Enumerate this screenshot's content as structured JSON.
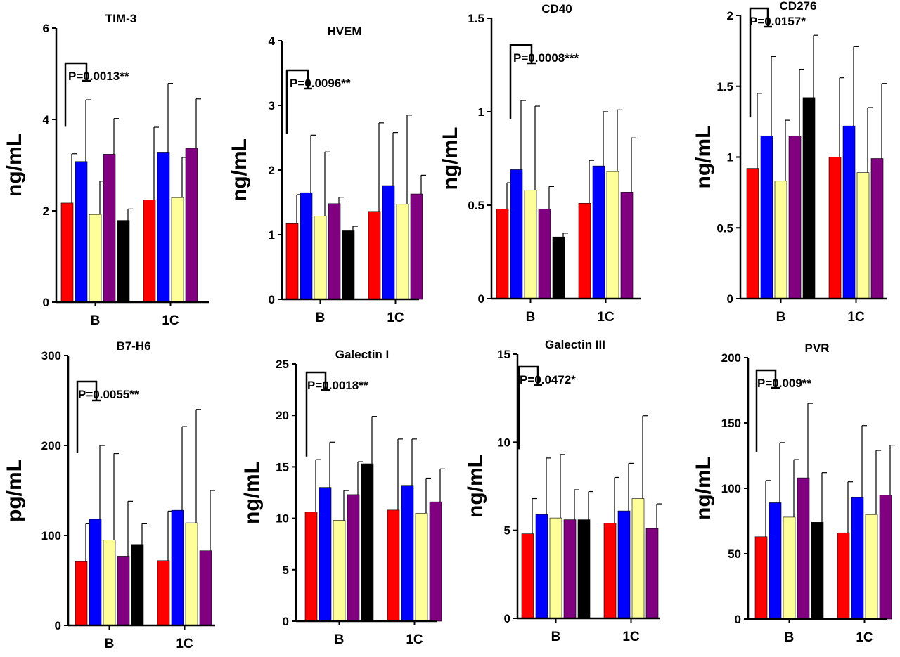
{
  "colors": [
    "#ff0000",
    "#0000ff",
    "#ffff99",
    "#800080",
    "#000000"
  ],
  "chart_data": [
    {
      "type": "bar",
      "title": "TIM-3",
      "ylabel": "ng/mL",
      "ylim": [
        0,
        6
      ],
      "yticks": [
        0,
        2,
        4,
        6
      ],
      "ytick_labels": [
        "0",
        "2",
        "4",
        "6"
      ],
      "categories": [
        "B",
        "1C"
      ],
      "annotation": "P=0.0013**",
      "groups": [
        {
          "values": [
            2.17,
            3.08,
            1.92,
            3.24,
            1.79
          ],
          "errors": [
            1.08,
            1.35,
            0.73,
            0.78,
            0.25
          ]
        },
        {
          "values": [
            2.24,
            3.27,
            2.29,
            3.37
          ],
          "errors": [
            1.59,
            1.52,
            0.88,
            1.08
          ]
        }
      ]
    },
    {
      "type": "bar",
      "title": "HVEM",
      "ylabel": "ng/mL",
      "ylim": [
        0,
        4
      ],
      "yticks": [
        0,
        1,
        2,
        3,
        4
      ],
      "ytick_labels": [
        "0",
        "1",
        "2",
        "3",
        "4"
      ],
      "categories": [
        "B",
        "1C"
      ],
      "annotation": "P=0.0096**",
      "groups": [
        {
          "values": [
            1.17,
            1.65,
            1.29,
            1.48,
            1.06
          ],
          "errors": [
            0.45,
            0.89,
            0.99,
            0.1,
            0.07
          ]
        },
        {
          "values": [
            1.36,
            1.76,
            1.47,
            1.63
          ],
          "errors": [
            1.37,
            0.82,
            1.38,
            0.29
          ]
        }
      ]
    },
    {
      "type": "bar",
      "title": "CD40",
      "ylabel": "ng/mL",
      "ylim": [
        0,
        1.5
      ],
      "yticks": [
        0,
        0.5,
        1,
        1.5
      ],
      "ytick_labels": [
        "0",
        "0.5",
        "1",
        "1.5"
      ],
      "categories": [
        "B",
        "1C"
      ],
      "annotation": "P=0.0008***",
      "groups": [
        {
          "values": [
            0.48,
            0.69,
            0.58,
            0.48,
            0.33
          ],
          "errors": [
            0.14,
            0.37,
            0.45,
            0.12,
            0.02
          ]
        },
        {
          "values": [
            0.51,
            0.71,
            0.68,
            0.57
          ],
          "errors": [
            0.23,
            0.29,
            0.33,
            0.29
          ]
        }
      ]
    },
    {
      "type": "bar",
      "title": "CD276",
      "ylabel": "ng/mL",
      "ylim": [
        0,
        2
      ],
      "yticks": [
        0,
        0.5,
        1,
        1.5,
        2
      ],
      "ytick_labels": [
        "0",
        "0.5",
        "1",
        "1.5",
        "2"
      ],
      "categories": [
        "B",
        "1C"
      ],
      "annotation": "P=0.0157*",
      "groups": [
        {
          "values": [
            0.92,
            1.15,
            0.83,
            1.15,
            1.42
          ],
          "errors": [
            0.53,
            0.56,
            0.43,
            0.47,
            0.44
          ]
        },
        {
          "values": [
            1.0,
            1.22,
            0.89,
            0.99
          ],
          "errors": [
            0.56,
            0.56,
            0.46,
            0.53
          ]
        }
      ]
    },
    {
      "type": "bar",
      "title": "B7-H6",
      "ylabel": "pg/mL",
      "ylim": [
        0,
        300
      ],
      "yticks": [
        0,
        100,
        200,
        300
      ],
      "ytick_labels": [
        "0",
        "100",
        "200",
        "300"
      ],
      "categories": [
        "B",
        "1C"
      ],
      "annotation": "P=0.0055**",
      "groups": [
        {
          "values": [
            71,
            118,
            95,
            77,
            90
          ],
          "errors": [
            42,
            82,
            96,
            61,
            23
          ]
        },
        {
          "values": [
            72,
            128,
            114,
            83
          ],
          "errors": [
            55,
            93,
            126,
            67
          ]
        }
      ]
    },
    {
      "type": "bar",
      "title": "Galectin I",
      "ylabel": "ng/mL",
      "ylim": [
        0,
        25
      ],
      "yticks": [
        0,
        5,
        10,
        15,
        20,
        25
      ],
      "ytick_labels": [
        "0",
        "5",
        "10",
        "15",
        "20",
        "25"
      ],
      "categories": [
        "B",
        "1C"
      ],
      "annotation": "P=0.0018**",
      "groups": [
        {
          "values": [
            10.6,
            13.0,
            9.8,
            12.3,
            15.3
          ],
          "errors": [
            5.1,
            4.4,
            2.9,
            3.2,
            4.6
          ]
        },
        {
          "values": [
            10.8,
            13.2,
            10.5,
            11.6
          ],
          "errors": [
            6.9,
            4.5,
            3.4,
            3.2
          ]
        }
      ]
    },
    {
      "type": "bar",
      "title": "Galectin III",
      "ylabel": "ng/mL",
      "ylim": [
        0,
        15
      ],
      "yticks": [
        0,
        5,
        10,
        15
      ],
      "ytick_labels": [
        "0",
        "5",
        "10",
        "15"
      ],
      "categories": [
        "B",
        "1C"
      ],
      "annotation": "P=0.0472*",
      "groups": [
        {
          "values": [
            4.8,
            5.9,
            5.7,
            5.6,
            5.6
          ],
          "errors": [
            2.0,
            3.2,
            3.6,
            1.7,
            1.6
          ]
        },
        {
          "values": [
            5.4,
            6.1,
            6.8,
            5.1
          ],
          "errors": [
            2.6,
            2.7,
            4.7,
            1.4
          ]
        }
      ]
    },
    {
      "type": "bar",
      "title": "PVR",
      "ylabel": "ng/mL",
      "ylim": [
        0,
        200
      ],
      "yticks": [
        0,
        50,
        100,
        150,
        200
      ],
      "ytick_labels": [
        "0",
        "50",
        "100",
        "150",
        "200"
      ],
      "categories": [
        "B",
        "1C"
      ],
      "annotation": "P=0.009**",
      "groups": [
        {
          "values": [
            63,
            89,
            78,
            108,
            74
          ],
          "errors": [
            43,
            46,
            44,
            57,
            38
          ]
        },
        {
          "values": [
            66,
            93,
            80,
            95
          ],
          "errors": [
            39,
            55,
            49,
            38
          ]
        }
      ]
    }
  ]
}
